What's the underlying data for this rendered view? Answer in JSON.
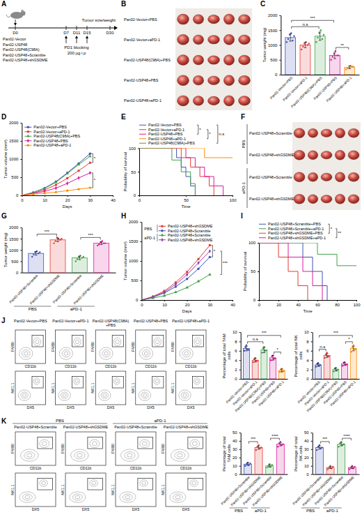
{
  "diagram": {
    "letter": "A",
    "days": [
      "D0",
      "D7",
      "D11",
      "D15",
      "D30"
    ],
    "treatment": [
      "PD1 blocking",
      "200 µg i.p"
    ],
    "endpoint": "Tumor size/weight",
    "groups": [
      "Pan02-Vector",
      "Pan02-USP48",
      "Pan02-USP48(C98A)",
      "Pan02-USP48+Scramble",
      "Pan02-USP48+shGSDME"
    ]
  },
  "photos": [
    {
      "letter": "B",
      "rows": [
        "Pan02-Vector+PBS",
        "Pan02-Vector+aPD-1",
        "Pan02-USP48(C98A)+PBS",
        "Pan02-USP48+PBS",
        "Pan02-USP48+aPD-1"
      ]
    },
    {
      "letter": "F",
      "groups": [
        {
          "label": "PBS",
          "rows": [
            "Pan02-USP48+Scramble",
            "Pan02-USP48+shGSDME"
          ]
        },
        {
          "label": "aPD-1",
          "rows": [
            "Pan02-USP48+Scramble",
            "Pan02-USP48+shGSDME"
          ]
        }
      ]
    }
  ],
  "flow": [
    {
      "letter": "J",
      "axes": [
        {
          "x": "CD11b",
          "y": "F4/80"
        },
        {
          "x": "DX5",
          "y": "NK1.1"
        }
      ],
      "plots": [
        "Pan02-Vector+PBS",
        "Pan02-Vector+aPD-1",
        "Pan02-USP48(C98A)+PBS",
        "Pan02-USP48+PBS",
        "Pan02-USP48+aPD-1"
      ]
    },
    {
      "letter": "K",
      "axes": [
        {
          "x": "CD11b",
          "y": "F4/80"
        },
        {
          "x": "DX5",
          "y": "NK1.1"
        }
      ],
      "groups": [
        {
          "label": "PBS",
          "plots": [
            "Pan02-USP48+Scramble",
            "Pan02-USP48+shGSDME"
          ]
        },
        {
          "label": "aPD-1",
          "plots": [
            "Pan02-USP48+Scramble",
            "Pan02-USP48+shGSDME"
          ]
        }
      ]
    }
  ],
  "chart_data": [
    {
      "letter": "C",
      "type": "bar",
      "categories": [
        "Pan02-Vector+PBS",
        "Pan02-Vector+aPD-1",
        "Pan02-USP48(C98A)+PBS",
        "Pan02-USP48+PBS",
        "Pan02-USP48+aPD-1"
      ],
      "values": [
        1250,
        1000,
        1300,
        650,
        250
      ],
      "errors": [
        120,
        90,
        140,
        110,
        50
      ],
      "points": [
        [
          1100,
          1200,
          1350,
          1400,
          1150,
          1300
        ],
        [
          850,
          950,
          1050,
          1100,
          1000,
          1050
        ],
        [
          1100,
          1250,
          1400,
          1500,
          1200,
          1350
        ],
        [
          500,
          600,
          700,
          800,
          650,
          650
        ],
        [
          180,
          220,
          250,
          300,
          280,
          270
        ]
      ],
      "colors": [
        "#3f51b5",
        "#e53935",
        "#43a047",
        "#d81b9a",
        "#fb8c00"
      ],
      "ylabel": "Tumor weight (mg)",
      "ylim": [
        0,
        2000
      ],
      "yticks": [
        0,
        500,
        1000,
        1500,
        2000
      ],
      "annotations": [
        {
          "text": "n.s",
          "from": 0,
          "to": 2
        },
        {
          "text": "***",
          "from": 0,
          "to": 3
        },
        {
          "text": "**",
          "from": 3,
          "to": 4
        }
      ]
    },
    {
      "letter": "D",
      "type": "line",
      "x": [
        0,
        5,
        10,
        15,
        20,
        25,
        30
      ],
      "xlim": [
        0,
        40
      ],
      "xticks": [
        0,
        10,
        20,
        30,
        40
      ],
      "xlabel": "Days",
      "ylim": [
        0,
        2000
      ],
      "yticks": [
        0,
        500,
        1000,
        1500,
        2000
      ],
      "ylabel": "Tumor volume (mm³)",
      "legend": "top-left",
      "series": [
        {
          "name": "Pan02-Vector+PBS",
          "color": "#3f51b5",
          "marker": "circle",
          "values": [
            0,
            80,
            200,
            380,
            620,
            880,
            1150
          ]
        },
        {
          "name": "Pan02-Vector+aPD-1",
          "color": "#e53935",
          "marker": "square",
          "values": [
            0,
            60,
            150,
            290,
            470,
            680,
            900
          ]
        },
        {
          "name": "Pan02-USP48(C98A)+PBS",
          "color": "#43a047",
          "marker": "triangle",
          "values": [
            0,
            75,
            190,
            360,
            600,
            850,
            1080
          ]
        },
        {
          "name": "Pan02-USP48+PBS",
          "color": "#d81b9a",
          "marker": "diamond",
          "values": [
            0,
            50,
            110,
            200,
            330,
            480,
            620
          ]
        },
        {
          "name": "Pan02-USP48+aPD-1",
          "color": "#fb8c00",
          "marker": "circle",
          "values": [
            0,
            30,
            60,
            90,
            130,
            170,
            210
          ]
        }
      ],
      "annotations": [
        {
          "text": "*",
          "from": 0,
          "to": 1
        },
        {
          "text": "*",
          "from": 3,
          "to": 4
        }
      ]
    },
    {
      "letter": "E",
      "type": "line",
      "line_style": "step",
      "xlim": [
        0,
        100
      ],
      "xticks": [
        0,
        50,
        100
      ],
      "xlabel": "Time",
      "ylim": [
        0,
        100
      ],
      "yticks": [
        0,
        50,
        100
      ],
      "ylabel": "Probability of survival",
      "legend": "top",
      "series": [
        {
          "name": "Pan02-Vector+PBS",
          "color": "#3f51b5",
          "x": [
            0,
            40,
            45,
            50,
            55,
            60
          ],
          "values": [
            100,
            80,
            60,
            40,
            20,
            0
          ]
        },
        {
          "name": "Pan02-Vector+aPD-1",
          "color": "#e53935",
          "x": [
            0,
            45,
            55,
            65,
            75,
            80
          ],
          "values": [
            100,
            80,
            60,
            40,
            20,
            0
          ]
        },
        {
          "name": "Pan02-USP48+PBS",
          "color": "#d81b9a",
          "x": [
            0,
            50,
            60,
            70,
            80,
            90
          ],
          "values": [
            100,
            80,
            60,
            40,
            20,
            0
          ]
        },
        {
          "name": "Pan02-USP48+aPD-1",
          "color": "#fb8c00",
          "x": [
            0,
            70,
            100
          ],
          "values": [
            100,
            80,
            80
          ]
        },
        {
          "name": "Pan02-USP48(C98A)+PBS",
          "color": "#43a047",
          "x": [
            0,
            35,
            45,
            55,
            60
          ],
          "values": [
            100,
            75,
            50,
            25,
            0
          ]
        }
      ],
      "annotations": [
        {
          "text": "*",
          "from": 0,
          "to": 2
        },
        {
          "text": "*",
          "from": 1,
          "to": 3
        },
        {
          "text": "n.s",
          "from": 0,
          "to": 4
        }
      ]
    },
    {
      "letter": "G",
      "type": "bar",
      "categories": [
        "Pan02-USP48+Scramble",
        "Pan02-USP48+shGSDME",
        "Pan02-USP48+Scramble",
        "Pan02-USP48+shGSDME"
      ],
      "groups": [
        {
          "label": "PBS",
          "from": 0,
          "to": 1
        },
        {
          "label": "aPD-1",
          "from": 2,
          "to": 3
        }
      ],
      "values": [
        850,
        1450,
        650,
        1300
      ],
      "errors": [
        80,
        80,
        80,
        60
      ],
      "points": [
        [
          700,
          800,
          900,
          950,
          850,
          900
        ],
        [
          1300,
          1400,
          1550,
          1500,
          1450,
          1500
        ],
        [
          500,
          600,
          700,
          750,
          650,
          700
        ],
        [
          1200,
          1250,
          1350,
          1400,
          1300,
          1300
        ]
      ],
      "colors": [
        "#3f51b5",
        "#e53935",
        "#43a047",
        "#d81b9a"
      ],
      "ylabel": "Tumor weight (mg)",
      "ylim": [
        0,
        2000
      ],
      "yticks": [
        0,
        500,
        1000,
        1500,
        2000
      ],
      "annotations": [
        {
          "text": "***",
          "from": 0,
          "to": 1
        },
        {
          "text": "***",
          "from": 2,
          "to": 3
        }
      ]
    },
    {
      "letter": "H",
      "type": "line",
      "x": [
        0,
        5,
        10,
        15,
        20,
        25,
        30
      ],
      "xlim": [
        0,
        40
      ],
      "xticks": [
        0,
        10,
        20,
        30,
        40
      ],
      "xlabel": "Days",
      "ylim": [
        0,
        2000
      ],
      "yticks": [
        0,
        500,
        1000,
        1500,
        2000
      ],
      "ylabel": "Tumor volume (mm³)",
      "legend": "top-left",
      "legend_groups": [
        {
          "label": "PBS",
          "from": 0,
          "to": 1
        },
        {
          "label": "aPD-1",
          "from": 2,
          "to": 3
        }
      ],
      "series": [
        {
          "name": "Pan02-USP48+shGSDME",
          "color": "#e53935",
          "marker": "square",
          "values": [
            0,
            90,
            230,
            450,
            720,
            1050,
            1400
          ]
        },
        {
          "name": "Pan02-USP48+Scramble",
          "color": "#3f51b5",
          "marker": "circle",
          "values": [
            0,
            70,
            180,
            340,
            540,
            800,
            1100
          ]
        },
        {
          "name": "Pan02-USP48+Scramble",
          "color": "#43a047",
          "marker": "triangle",
          "values": [
            0,
            50,
            110,
            200,
            320,
            480,
            650
          ]
        },
        {
          "name": "Pan02-USP48+shGSDME",
          "color": "#8e44ad",
          "marker": "diamond",
          "values": [
            0,
            80,
            200,
            400,
            650,
            950,
            1250
          ]
        }
      ],
      "annotations": [
        {
          "text": "*",
          "from": 0,
          "to": 1
        },
        {
          "text": "***",
          "from": 2,
          "to": 3
        }
      ]
    },
    {
      "letter": "I",
      "type": "line",
      "line_style": "step",
      "xlim": [
        0,
        100
      ],
      "xticks": [
        0,
        20,
        40,
        60,
        80,
        100
      ],
      "xlabel": "Time",
      "ylim": [
        0,
        100
      ],
      "yticks": [
        0,
        50,
        100
      ],
      "ylabel": "Probability of survival",
      "legend": "top",
      "series": [
        {
          "name": "Pan02-USP48+Scramble+PBS",
          "color": "#3f51b5",
          "x": [
            0,
            45,
            55,
            65,
            70
          ],
          "values": [
            100,
            75,
            50,
            25,
            0
          ]
        },
        {
          "name": "Pan02-USP48+Scramble+aPD-1",
          "color": "#43a047",
          "x": [
            0,
            60,
            80,
            100
          ],
          "values": [
            100,
            80,
            60,
            60
          ]
        },
        {
          "name": "Pan02-USP48+shGSDME+PBS",
          "color": "#e53935",
          "x": [
            0,
            20,
            30,
            40,
            50
          ],
          "values": [
            100,
            75,
            50,
            25,
            0
          ]
        },
        {
          "name": "Pan02-USP48+shGSDME+aPD-1",
          "color": "#d81b9a",
          "x": [
            0,
            30,
            45,
            55,
            65
          ],
          "values": [
            100,
            75,
            50,
            25,
            0
          ]
        }
      ],
      "annotations": [
        {
          "text": "*",
          "from": 0,
          "to": 2
        },
        {
          "text": "**",
          "from": 1,
          "to": 3
        }
      ]
    },
    {
      "type": "bar",
      "categories": [
        "Pan02-Vector+PBS",
        "Pan02-Vector+aPD-1",
        "Pan02-USP48(C98A)+PBS",
        "Pan02-USP48+PBS",
        "Pan02-USP48+aPD-1"
      ],
      "values": [
        6.5,
        4.0,
        6.2,
        4.5,
        1.8
      ],
      "errors": [
        0.5,
        0.4,
        0.6,
        0.5,
        0.3
      ],
      "points": [
        [
          6.0,
          6.8,
          7.2,
          6.3,
          6.2
        ],
        [
          3.6,
          4.2,
          4.5,
          3.8,
          3.9
        ],
        [
          5.6,
          6.5,
          6.8,
          6.0,
          6.1
        ],
        [
          4.0,
          4.8,
          5.0,
          4.3,
          4.4
        ],
        [
          1.5,
          2.0,
          2.2,
          1.6,
          1.7
        ]
      ],
      "colors": [
        "#3f51b5",
        "#e53935",
        "#43a047",
        "#d81b9a",
        "#fb8c00"
      ],
      "ylabel": "Percentage of total TAM cells",
      "ylim": [
        0,
        10
      ],
      "yticks": [
        0,
        2,
        4,
        6,
        8,
        10
      ],
      "annotations": [
        {
          "text": "n.s",
          "from": 0,
          "to": 2
        },
        {
          "text": "***",
          "from": 0,
          "to": 4
        },
        {
          "text": "*",
          "from": 3,
          "to": 4
        }
      ]
    },
    {
      "type": "bar",
      "categories": [
        "Pan02-Vector+PBS",
        "Pan02-Vector+aPD-1",
        "Pan02-USP48(C98A)+PBS",
        "Pan02-USP48+PBS",
        "Pan02-USP48+aPD-1"
      ],
      "values": [
        3.0,
        5.0,
        2.0,
        3.2,
        6.5
      ],
      "errors": [
        0.3,
        0.4,
        0.3,
        0.3,
        0.5
      ],
      "points": [
        [
          2.6,
          3.2,
          3.4,
          2.8,
          3.0
        ],
        [
          4.5,
          5.2,
          5.6,
          4.8,
          4.9
        ],
        [
          1.6,
          2.2,
          2.4,
          1.8,
          2.0
        ],
        [
          2.8,
          3.5,
          3.6,
          3.0,
          3.1
        ],
        [
          5.8,
          6.8,
          7.2,
          6.4,
          6.3
        ]
      ],
      "colors": [
        "#3f51b5",
        "#e53935",
        "#43a047",
        "#d81b9a",
        "#fb8c00"
      ],
      "ylabel": "Percentage of total NK cells",
      "ylim": [
        0,
        10
      ],
      "yticks": [
        0,
        2,
        4,
        6,
        8,
        10
      ],
      "annotations": [
        {
          "text": "n.s",
          "from": 0,
          "to": 1
        },
        {
          "text": "***",
          "from": 0,
          "to": 4
        },
        {
          "text": "*",
          "from": 3,
          "to": 4
        }
      ]
    },
    {
      "type": "bar",
      "categories": [
        "Pan02-USP48+Scramble",
        "Pan02-USP48+shGSDME",
        "Pan02-USP48+Scramble",
        "Pan02-USP48+shGSDME"
      ],
      "groups": [
        {
          "label": "PBS",
          "from": 0,
          "to": 1
        },
        {
          "label": "aPD-1",
          "from": 2,
          "to": 3
        }
      ],
      "values": [
        12,
        32,
        10,
        36
      ],
      "errors": [
        1.5,
        2,
        1.5,
        2
      ],
      "points": [
        [
          10,
          12,
          14,
          11,
          13
        ],
        [
          29,
          33,
          35,
          31,
          32
        ],
        [
          8,
          10,
          12,
          9,
          11
        ],
        [
          33,
          37,
          39,
          35,
          36
        ]
      ],
      "colors": [
        "#3f51b5",
        "#e53935",
        "#43a047",
        "#d81b9a"
      ],
      "ylabel": "Percentage of total TAM cells",
      "ylim": [
        0,
        50
      ],
      "yticks": [
        0,
        10,
        20,
        30,
        40,
        50
      ],
      "annotations": [
        {
          "text": "***",
          "from": 0,
          "to": 1
        },
        {
          "text": "****",
          "from": 2,
          "to": 3
        }
      ]
    },
    {
      "type": "bar",
      "categories": [
        "Pan02-USP48+Scramble",
        "Pan02-USP48+shGSDME",
        "Pan02-USP48+Scramble",
        "Pan02-USP48+shGSDME"
      ],
      "groups": [
        {
          "label": "PBS",
          "from": 0,
          "to": 1
        },
        {
          "label": "aPD-1",
          "from": 2,
          "to": 3
        }
      ],
      "values": [
        32,
        8,
        36,
        8
      ],
      "errors": [
        2,
        1.2,
        2,
        1.2
      ],
      "points": [
        [
          29,
          33,
          35,
          31,
          32
        ],
        [
          6,
          8,
          10,
          7,
          9
        ],
        [
          33,
          37,
          39,
          35,
          36
        ],
        [
          6,
          8,
          10,
          7,
          9
        ]
      ],
      "colors": [
        "#3f51b5",
        "#e53935",
        "#43a047",
        "#d81b9a"
      ],
      "ylabel": "Percentage of total NK cells",
      "ylim": [
        0,
        50
      ],
      "yticks": [
        0,
        10,
        20,
        30,
        40,
        50
      ],
      "annotations": [
        {
          "text": "***",
          "from": 0,
          "to": 1
        },
        {
          "text": "****",
          "from": 2,
          "to": 3
        }
      ]
    }
  ]
}
